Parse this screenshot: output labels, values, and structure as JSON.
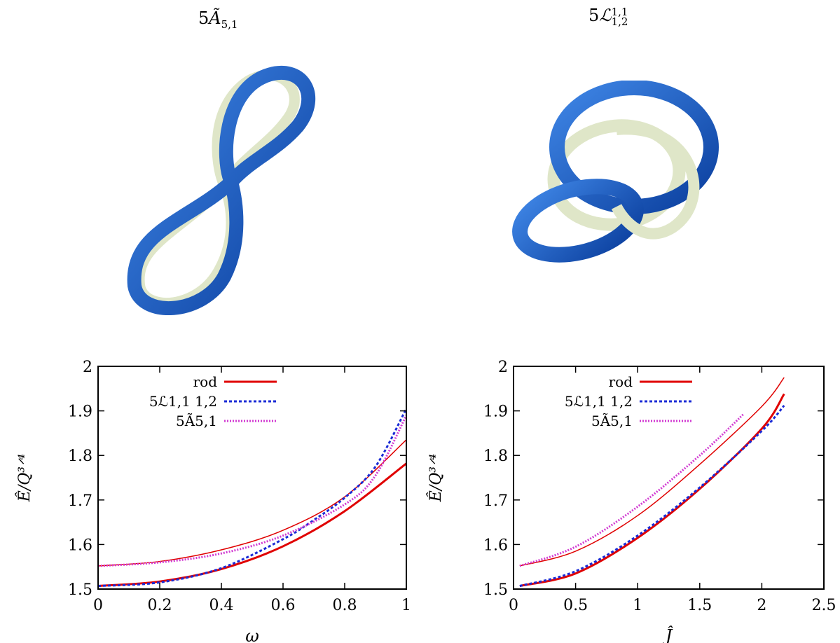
{
  "figures": [
    {
      "label_prefix": "5",
      "label_symbol": "Ã",
      "label_sub": "5,1",
      "label_sup": ""
    },
    {
      "label_prefix": "5",
      "label_symbol": "ℒ",
      "label_sub": "1,2",
      "label_sup": "1,1"
    }
  ],
  "colors": {
    "tube_outer": "#1f5fc4",
    "tube_inner": "#dfe6c8",
    "rod": "#e00000",
    "L": "#1a2bd6",
    "A": "#d23bd2"
  },
  "chart_data": [
    {
      "type": "line",
      "xlabel": "ω",
      "ylabel": "Ê/Q^{3/4}",
      "xlim": [
        0,
        1
      ],
      "ylim": [
        1.5,
        2
      ],
      "xticks": [
        "0",
        "0.2",
        "0.4",
        "0.6",
        "0.8",
        "1"
      ],
      "yticks": [
        "1.5",
        "1.6",
        "1.7",
        "1.8",
        "1.9",
        "2"
      ],
      "legend": [
        "rod",
        "5ℒ1,1 1,2",
        "5Ã5,1"
      ],
      "series": [
        {
          "name": "rod",
          "style": "thick",
          "x": [
            0,
            0.2,
            0.4,
            0.6,
            0.8,
            1.0
          ],
          "y": [
            1.507,
            1.517,
            1.545,
            1.596,
            1.675,
            1.782
          ]
        },
        {
          "name": "rod",
          "style": "thin",
          "x": [
            0,
            0.2,
            0.4,
            0.6,
            0.8,
            1.0
          ],
          "y": [
            1.552,
            1.562,
            1.588,
            1.632,
            1.707,
            1.835
          ]
        },
        {
          "name": "5ℒ1,1 1,2",
          "style": "dashed",
          "x": [
            0,
            0.2,
            0.4,
            0.6,
            0.7,
            0.8,
            0.9,
            1.0
          ],
          "y": [
            1.507,
            1.515,
            1.547,
            1.612,
            1.655,
            1.705,
            1.775,
            1.905
          ]
        },
        {
          "name": "5Ã5,1",
          "style": "dotted",
          "x": [
            0,
            0.2,
            0.4,
            0.6,
            0.8,
            0.9,
            1.0
          ],
          "y": [
            1.552,
            1.56,
            1.58,
            1.62,
            1.69,
            1.755,
            1.89
          ]
        }
      ]
    },
    {
      "type": "line",
      "xlabel": "Ĵ",
      "ylabel": "Ê/Q^{3/4}",
      "xlim": [
        0,
        2.5
      ],
      "ylim": [
        1.5,
        2
      ],
      "xticks": [
        "0",
        "0.5",
        "1",
        "1.5",
        "2",
        "2.5"
      ],
      "yticks": [
        "1.5",
        "1.6",
        "1.7",
        "1.8",
        "1.9",
        "2"
      ],
      "legend": [
        "rod",
        "5ℒ1,1 1,2",
        "5Ã5,1"
      ],
      "series": [
        {
          "name": "rod",
          "style": "thick",
          "x": [
            0.05,
            0.5,
            1.0,
            1.5,
            2.0,
            2.18
          ],
          "y": [
            1.507,
            1.535,
            1.615,
            1.725,
            1.86,
            1.938
          ]
        },
        {
          "name": "rod",
          "style": "thin",
          "x": [
            0.05,
            0.5,
            1.0,
            1.5,
            2.0,
            2.18
          ],
          "y": [
            1.552,
            1.585,
            1.665,
            1.78,
            1.91,
            1.975
          ]
        },
        {
          "name": "5ℒ1,1 1,2",
          "style": "dashed",
          "x": [
            0.05,
            0.5,
            1.0,
            1.5,
            2.0,
            2.18
          ],
          "y": [
            1.507,
            1.54,
            1.62,
            1.728,
            1.855,
            1.912
          ]
        },
        {
          "name": "5Ã5,1",
          "style": "dotted",
          "x": [
            0.05,
            0.5,
            1.0,
            1.5,
            1.85
          ],
          "y": [
            1.552,
            1.595,
            1.685,
            1.8,
            1.892
          ]
        }
      ]
    }
  ]
}
